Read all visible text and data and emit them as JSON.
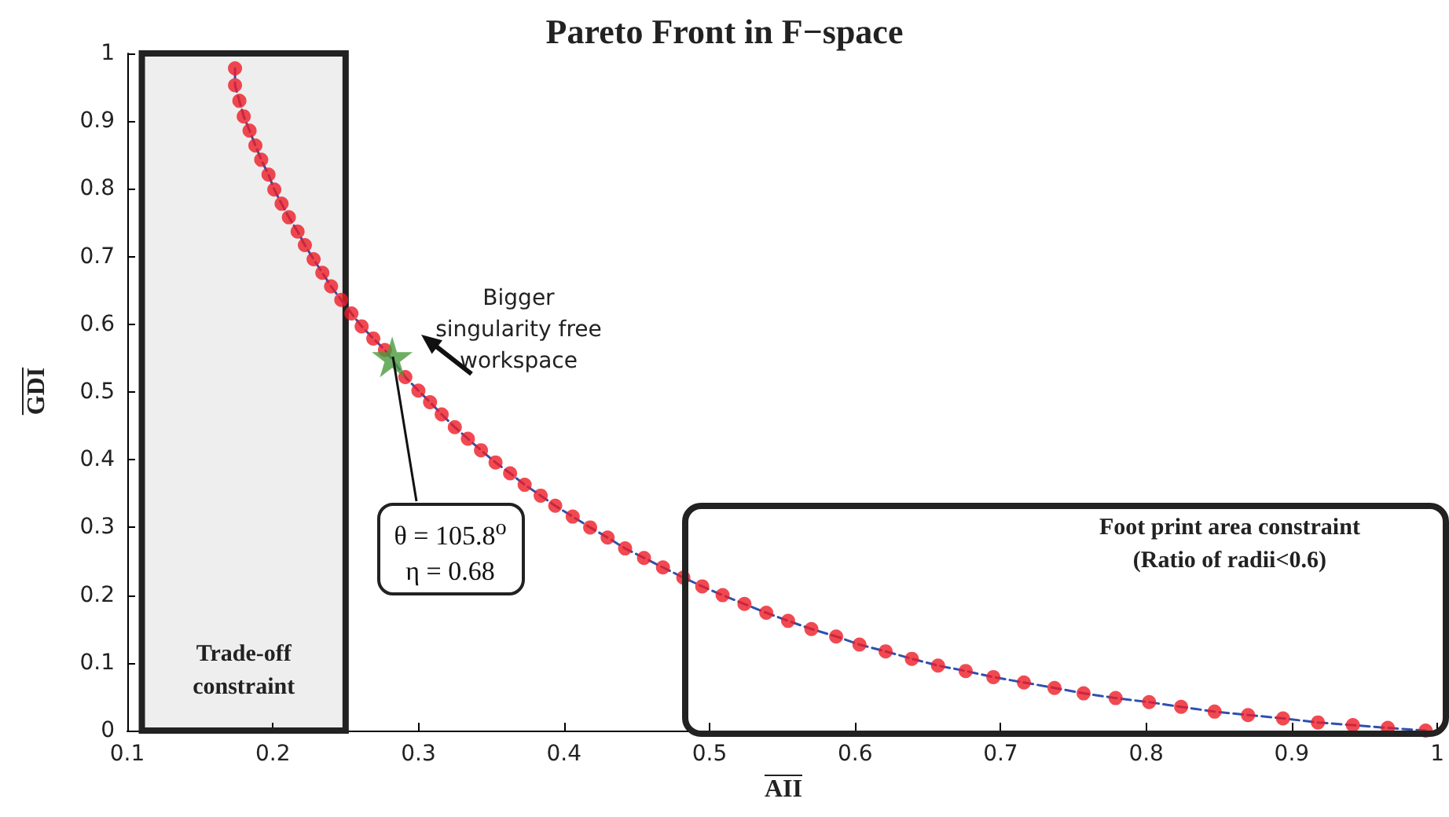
{
  "chart_data": {
    "type": "scatter",
    "title": "Pareto Front in F−space",
    "xlabel": "AII",
    "ylabel": "GDI",
    "xlim": [
      0.1,
      1
    ],
    "ylim": [
      0,
      1
    ],
    "xticks": [
      0.1,
      0.2,
      0.3,
      0.4,
      0.5,
      0.6,
      0.7,
      0.8,
      0.9,
      1
    ],
    "yticks": [
      0,
      0.1,
      0.2,
      0.3,
      0.4,
      0.5,
      0.6,
      0.7,
      0.8,
      0.9,
      1
    ],
    "grid": false,
    "x": [
      0.174,
      0.174,
      0.177,
      0.18,
      0.184,
      0.188,
      0.192,
      0.197,
      0.201,
      0.206,
      0.211,
      0.217,
      0.222,
      0.228,
      0.234,
      0.24,
      0.247,
      0.254,
      0.261,
      0.269,
      0.277,
      0.291,
      0.3,
      0.308,
      0.316,
      0.325,
      0.334,
      0.343,
      0.353,
      0.363,
      0.373,
      0.384,
      0.394,
      0.406,
      0.418,
      0.43,
      0.442,
      0.455,
      0.468,
      0.482,
      0.495,
      0.509,
      0.524,
      0.539,
      0.554,
      0.57,
      0.587,
      0.603,
      0.621,
      0.639,
      0.657,
      0.676,
      0.695,
      0.716,
      0.737,
      0.757,
      0.779,
      0.802,
      0.824,
      0.847,
      0.87,
      0.894,
      0.918,
      0.942,
      0.966,
      0.992
    ],
    "series": [
      {
        "type": "line",
        "color": "#3050b0",
        "line_style": "dashed",
        "marker": "none",
        "values": [
          0.978,
          0.953,
          0.93,
          0.907,
          0.886,
          0.864,
          0.843,
          0.821,
          0.799,
          0.778,
          0.758,
          0.737,
          0.717,
          0.696,
          0.676,
          0.656,
          0.636,
          0.616,
          0.597,
          0.579,
          0.562,
          0.522,
          0.502,
          0.485,
          0.467,
          0.448,
          0.431,
          0.414,
          0.396,
          0.38,
          0.363,
          0.347,
          0.332,
          0.316,
          0.3,
          0.285,
          0.269,
          0.255,
          0.241,
          0.226,
          0.213,
          0.2,
          0.187,
          0.174,
          0.162,
          0.15,
          0.139,
          0.127,
          0.117,
          0.106,
          0.096,
          0.088,
          0.079,
          0.071,
          0.063,
          0.055,
          0.048,
          0.042,
          0.035,
          0.028,
          0.023,
          0.018,
          0.012,
          0.008,
          0.004,
          0
        ]
      },
      {
        "color": "#ee1c25",
        "marker": "circle",
        "values": [
          0.978,
          0.953,
          0.93,
          0.907,
          0.886,
          0.864,
          0.843,
          0.821,
          0.799,
          0.778,
          0.758,
          0.737,
          0.717,
          0.696,
          0.676,
          0.656,
          0.636,
          0.616,
          0.597,
          0.579,
          0.562,
          0.522,
          0.502,
          0.485,
          0.467,
          0.448,
          0.431,
          0.414,
          0.396,
          0.38,
          0.363,
          0.347,
          0.332,
          0.316,
          0.3,
          0.285,
          0.269,
          0.255,
          0.241,
          0.226,
          0.213,
          0.2,
          0.187,
          0.174,
          0.162,
          0.15,
          0.139,
          0.127,
          0.117,
          0.106,
          0.096,
          0.088,
          0.079,
          0.071,
          0.063,
          0.055,
          0.048,
          0.042,
          0.035,
          0.028,
          0.023,
          0.018,
          0.012,
          0.008,
          0.004,
          0
        ]
      },
      {
        "color": "#4a9a3c",
        "marker": "star",
        "x": [
          0.282
        ],
        "values": [
          0.552
        ]
      }
    ],
    "bands": [
      {
        "axis": "x",
        "from": 0.11,
        "to": 0.25,
        "label": "Trade-off\nconstraint",
        "color": "#222222"
      }
    ],
    "annotations": [
      {
        "text": "θ = 105.8$^{o}$\nη = 0.68",
        "x": 0.282,
        "y": 0.552
      },
      "Bigger\nsingularity free\nworkspace",
      "Foot print area constraint\n(Ratio of radii<0.6)"
    ]
  }
}
